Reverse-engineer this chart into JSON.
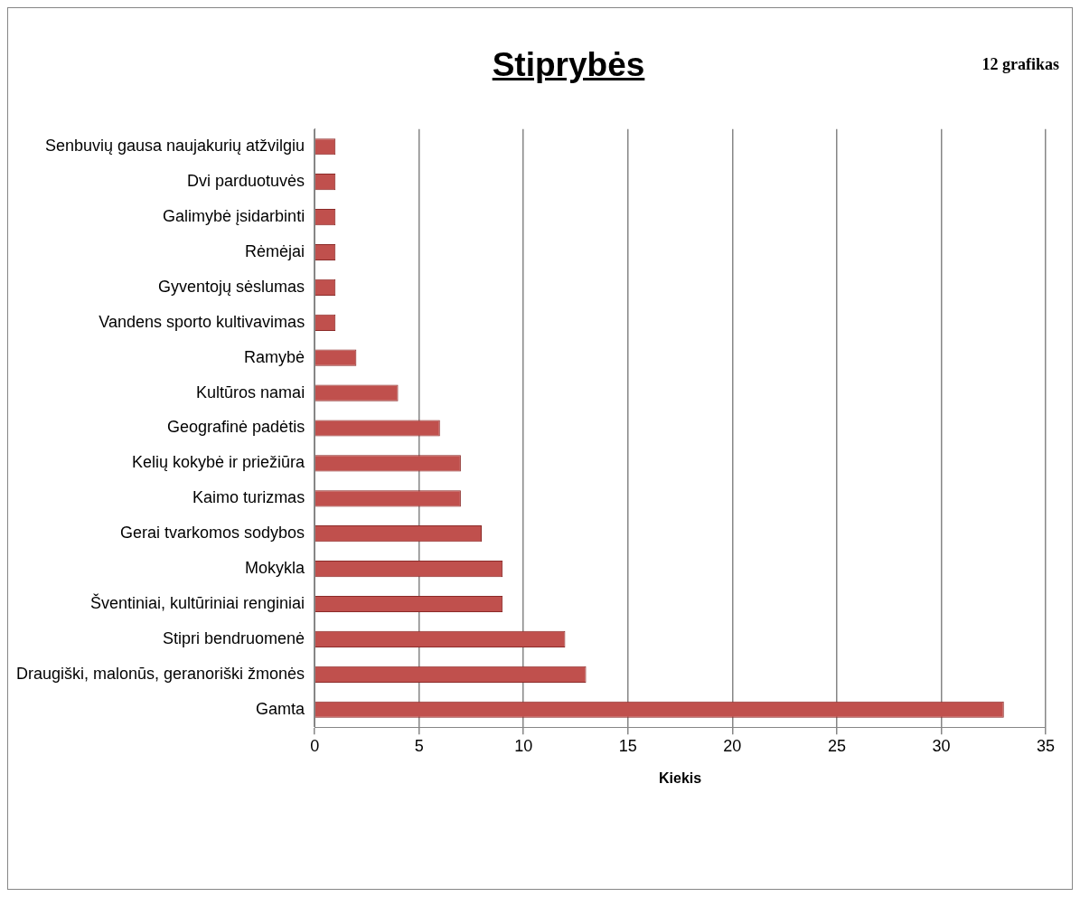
{
  "chart_data": {
    "type": "bar",
    "orientation": "horizontal",
    "title": "Stiprybės",
    "xlabel": "Kiekis",
    "annotations": [
      "12 grafikas"
    ],
    "categories": [
      "Senbuvių gausa naujakurių atžvilgiu",
      "Dvi parduotuvės",
      "Galimybė įsidarbinti",
      "Rėmėjai",
      "Gyventojų sėslumas",
      "Vandens sporto kultivavimas",
      "Ramybė",
      "Kultūros namai",
      "Geografinė padėtis",
      "Kelių kokybė ir priežiūra",
      "Kaimo turizmas",
      "Gerai tvarkomos sodybos",
      "Mokykla",
      "Šventiniai, kultūriniai renginiai",
      "Stipri bendruomenė",
      "Draugiški, malonūs, geranoriški žmonės",
      "Gamta"
    ],
    "values": [
      1,
      1,
      1,
      1,
      1,
      1,
      2,
      4,
      6,
      7,
      7,
      8,
      9,
      9,
      12,
      13,
      33
    ],
    "color": "#c0504d",
    "xlim": [
      0,
      35
    ],
    "xticks": [
      0,
      5,
      10,
      15,
      20,
      25,
      30,
      35
    ],
    "grid": "x",
    "legend": false
  }
}
